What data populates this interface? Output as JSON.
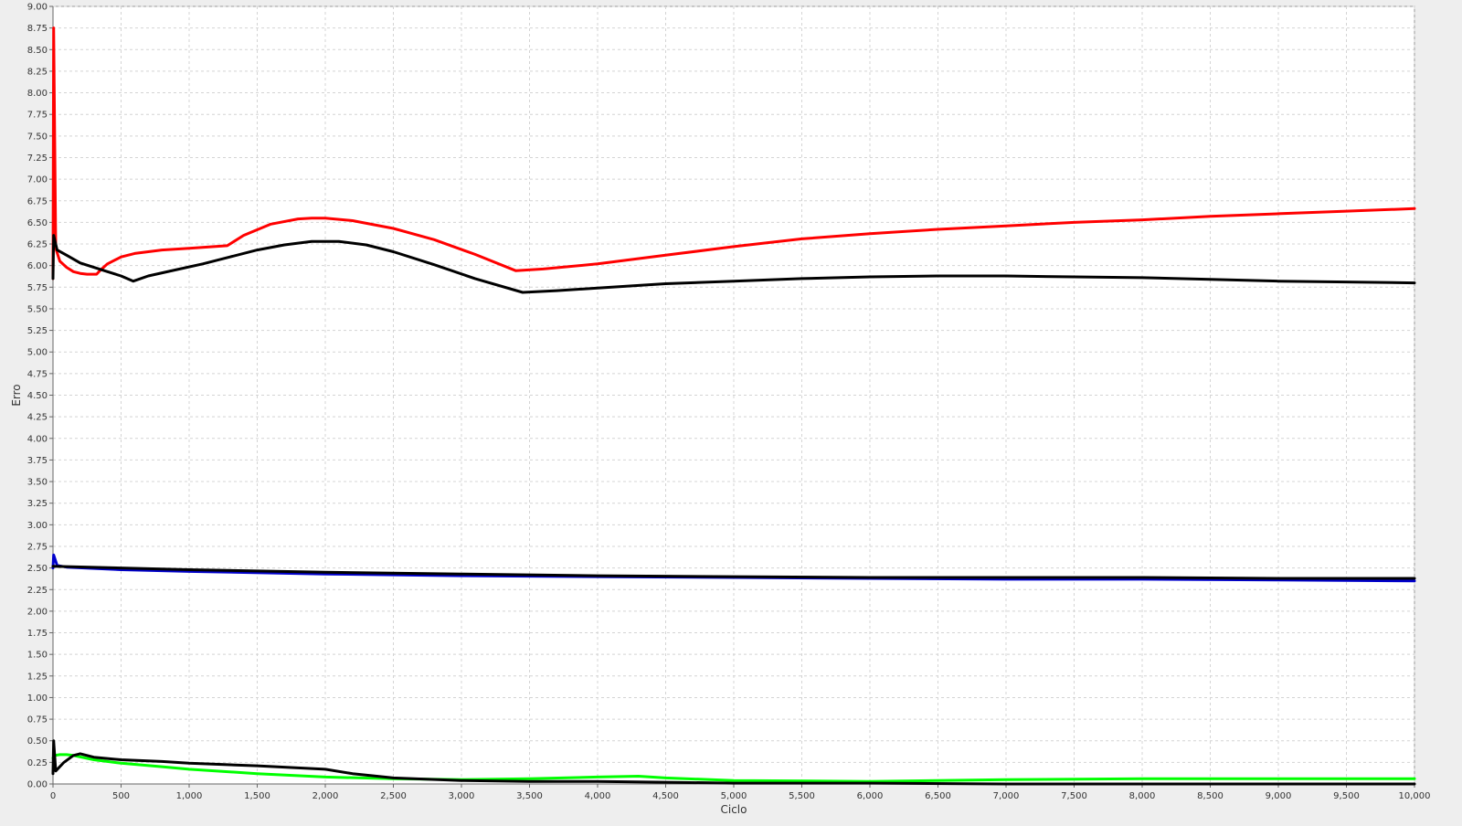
{
  "chart_data": {
    "type": "line",
    "title": "",
    "xlabel": "Ciclo",
    "ylabel": "Erro",
    "xlim": [
      0,
      10000
    ],
    "ylim": [
      0,
      9.0
    ],
    "x_ticks": [
      {
        "value": 0,
        "label": "0"
      },
      {
        "value": 500,
        "label": "500"
      },
      {
        "value": 1000,
        "label": "1,000"
      },
      {
        "value": 1500,
        "label": "1,500"
      },
      {
        "value": 2000,
        "label": "2,000"
      },
      {
        "value": 2500,
        "label": "2,500"
      },
      {
        "value": 3000,
        "label": "3,000"
      },
      {
        "value": 3500,
        "label": "3,500"
      },
      {
        "value": 4000,
        "label": "4,000"
      },
      {
        "value": 4500,
        "label": "4,500"
      },
      {
        "value": 5000,
        "label": "5,000"
      },
      {
        "value": 5500,
        "label": "5,500"
      },
      {
        "value": 6000,
        "label": "6,000"
      },
      {
        "value": 6500,
        "label": "6,500"
      },
      {
        "value": 7000,
        "label": "7,000"
      },
      {
        "value": 7500,
        "label": "7,500"
      },
      {
        "value": 8000,
        "label": "8,000"
      },
      {
        "value": 8500,
        "label": "8,500"
      },
      {
        "value": 9000,
        "label": "9,000"
      },
      {
        "value": 9500,
        "label": "9,500"
      },
      {
        "value": 10000,
        "label": "10,000"
      }
    ],
    "y_ticks": [
      {
        "value": 0.0,
        "label": "0.00"
      },
      {
        "value": 0.25,
        "label": "0.25"
      },
      {
        "value": 0.5,
        "label": "0.50"
      },
      {
        "value": 0.75,
        "label": "0.75"
      },
      {
        "value": 1.0,
        "label": "1.00"
      },
      {
        "value": 1.25,
        "label": "1.25"
      },
      {
        "value": 1.5,
        "label": "1.50"
      },
      {
        "value": 1.75,
        "label": "1.75"
      },
      {
        "value": 2.0,
        "label": "2.00"
      },
      {
        "value": 2.25,
        "label": "2.25"
      },
      {
        "value": 2.5,
        "label": "2.50"
      },
      {
        "value": 2.75,
        "label": "2.75"
      },
      {
        "value": 3.0,
        "label": "3.00"
      },
      {
        "value": 3.25,
        "label": "3.25"
      },
      {
        "value": 3.5,
        "label": "3.50"
      },
      {
        "value": 3.75,
        "label": "3.75"
      },
      {
        "value": 4.0,
        "label": "4.00"
      },
      {
        "value": 4.25,
        "label": "4.25"
      },
      {
        "value": 4.5,
        "label": "4.50"
      },
      {
        "value": 4.75,
        "label": "4.75"
      },
      {
        "value": 5.0,
        "label": "5.00"
      },
      {
        "value": 5.25,
        "label": "5.25"
      },
      {
        "value": 5.5,
        "label": "5.50"
      },
      {
        "value": 5.75,
        "label": "5.75"
      },
      {
        "value": 6.0,
        "label": "6.00"
      },
      {
        "value": 6.25,
        "label": "6.25"
      },
      {
        "value": 6.5,
        "label": "6.50"
      },
      {
        "value": 6.75,
        "label": "6.75"
      },
      {
        "value": 7.0,
        "label": "7.00"
      },
      {
        "value": 7.25,
        "label": "7.25"
      },
      {
        "value": 7.5,
        "label": "7.50"
      },
      {
        "value": 7.75,
        "label": "7.75"
      },
      {
        "value": 8.0,
        "label": "8.00"
      },
      {
        "value": 8.25,
        "label": "8.25"
      },
      {
        "value": 8.5,
        "label": "8.50"
      },
      {
        "value": 8.75,
        "label": "8.75"
      },
      {
        "value": 9.0,
        "label": "9.00"
      }
    ],
    "grid": true,
    "legend": "none",
    "series": [
      {
        "color": "#ff0000",
        "x": [
          0,
          5,
          20,
          50,
          100,
          150,
          200,
          250,
          320,
          350,
          400,
          500,
          600,
          800,
          1000,
          1280,
          1400,
          1600,
          1800,
          1900,
          2000,
          2200,
          2500,
          2800,
          3100,
          3400,
          3600,
          4000,
          4500,
          5000,
          5500,
          6000,
          6500,
          7000,
          7500,
          8000,
          8500,
          9000,
          9500,
          10000
        ],
        "y": [
          5.85,
          8.75,
          6.2,
          6.05,
          5.98,
          5.93,
          5.91,
          5.9,
          5.9,
          5.95,
          6.02,
          6.1,
          6.14,
          6.18,
          6.2,
          6.23,
          6.35,
          6.48,
          6.54,
          6.55,
          6.55,
          6.52,
          6.43,
          6.3,
          6.13,
          5.94,
          5.96,
          6.02,
          6.12,
          6.22,
          6.31,
          6.37,
          6.42,
          6.46,
          6.5,
          6.53,
          6.57,
          6.6,
          6.63,
          6.66
        ]
      },
      {
        "color": "#000000",
        "x": [
          0,
          5,
          30,
          100,
          200,
          300,
          400,
          500,
          590,
          700,
          900,
          1100,
          1300,
          1500,
          1700,
          1900,
          2100,
          2300,
          2500,
          2800,
          3100,
          3450,
          3700,
          4000,
          4500,
          5000,
          5500,
          6000,
          6500,
          7000,
          7500,
          8000,
          8500,
          9000,
          9500,
          10000
        ],
        "y": [
          5.85,
          6.35,
          6.18,
          6.12,
          6.03,
          5.98,
          5.93,
          5.88,
          5.82,
          5.88,
          5.95,
          6.02,
          6.1,
          6.18,
          6.24,
          6.28,
          6.28,
          6.24,
          6.16,
          6.01,
          5.85,
          5.69,
          5.71,
          5.74,
          5.79,
          5.82,
          5.85,
          5.87,
          5.88,
          5.88,
          5.87,
          5.86,
          5.84,
          5.82,
          5.81,
          5.8
        ]
      },
      {
        "color": "#0000cc",
        "x": [
          0,
          5,
          30,
          100,
          500,
          1000,
          2000,
          3000,
          4000,
          5000,
          6000,
          7000,
          8000,
          9000,
          10000
        ],
        "y": [
          2.5,
          2.65,
          2.53,
          2.51,
          2.48,
          2.46,
          2.43,
          2.41,
          2.4,
          2.39,
          2.38,
          2.37,
          2.37,
          2.36,
          2.35
        ]
      },
      {
        "color": "#000000",
        "x": [
          0,
          500,
          1000,
          2000,
          3000,
          4000,
          5000,
          6000,
          7000,
          8000,
          9000,
          10000
        ],
        "y": [
          2.52,
          2.5,
          2.48,
          2.45,
          2.43,
          2.41,
          2.4,
          2.39,
          2.39,
          2.39,
          2.38,
          2.38
        ]
      },
      {
        "color": "#00ff00",
        "x": [
          0,
          10,
          50,
          100,
          150,
          300,
          500,
          800,
          1000,
          1500,
          2000,
          2500,
          3000,
          3500,
          4000,
          4300,
          4500,
          5000,
          6000,
          7000,
          8000,
          9000,
          10000
        ],
        "y": [
          0.3,
          0.33,
          0.34,
          0.34,
          0.33,
          0.28,
          0.24,
          0.2,
          0.17,
          0.12,
          0.08,
          0.06,
          0.05,
          0.06,
          0.08,
          0.09,
          0.07,
          0.04,
          0.03,
          0.05,
          0.06,
          0.06,
          0.06
        ]
      },
      {
        "color": "#000000",
        "x": [
          0,
          5,
          20,
          80,
          150,
          200,
          300,
          500,
          800,
          1000,
          1500,
          2000,
          2200,
          2500,
          3000,
          3500,
          4000,
          4500,
          5000,
          6000,
          7000,
          8000,
          9000,
          10000
        ],
        "y": [
          0.12,
          0.5,
          0.15,
          0.25,
          0.33,
          0.35,
          0.31,
          0.28,
          0.26,
          0.24,
          0.21,
          0.17,
          0.12,
          0.07,
          0.04,
          0.03,
          0.03,
          0.02,
          0.01,
          0.01,
          0.0,
          0.0,
          0.0,
          0.0
        ]
      }
    ]
  }
}
